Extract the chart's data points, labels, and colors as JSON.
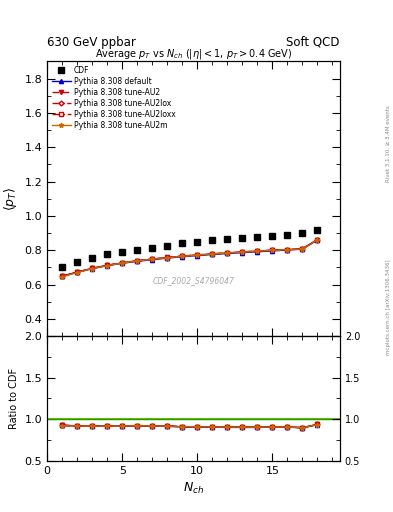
{
  "title_left": "630 GeV ppbar",
  "title_right": "Soft QCD",
  "right_label_top": "Rivet 3.1.10, ≥ 3.4M events",
  "right_label_bot": "mcplots.cern.ch [arXiv:1306.3436]",
  "plot_title": "Average $p_T$ vs $N_{ch}$ ($|\\eta| < 1$, $p_T > 0.4$ GeV)",
  "watermark": "CDF_2002_S4796047",
  "xlabel": "$N_{ch}$",
  "ylabel": "$\\langle p_T \\rangle$",
  "ylabel_ratio": "Ratio to CDF",
  "xlim": [
    0,
    19.5
  ],
  "ylim_main": [
    0.3,
    1.9
  ],
  "ylim_ratio": [
    0.5,
    2.0
  ],
  "yticks_main": [
    0.4,
    0.6,
    0.8,
    1.0,
    1.2,
    1.4,
    1.6,
    1.8
  ],
  "yticks_ratio": [
    0.5,
    1.0,
    1.5,
    2.0
  ],
  "xticks": [
    0,
    5,
    10,
    15
  ],
  "cdf_nch": [
    1,
    2,
    3,
    4,
    5,
    6,
    7,
    8,
    9,
    10,
    11,
    12,
    13,
    14,
    15,
    16,
    17,
    18
  ],
  "cdf_avgpt": [
    0.7,
    0.73,
    0.755,
    0.775,
    0.79,
    0.8,
    0.815,
    0.825,
    0.84,
    0.85,
    0.858,
    0.866,
    0.872,
    0.878,
    0.882,
    0.886,
    0.9,
    0.92
  ],
  "pythia_nch": [
    1,
    2,
    3,
    4,
    5,
    6,
    7,
    8,
    9,
    10,
    11,
    12,
    13,
    14,
    15,
    16,
    17,
    18
  ],
  "pythia_default": [
    0.648,
    0.672,
    0.693,
    0.71,
    0.724,
    0.735,
    0.745,
    0.754,
    0.762,
    0.769,
    0.775,
    0.781,
    0.786,
    0.791,
    0.796,
    0.801,
    0.806,
    0.86
  ],
  "pythia_au2": [
    0.648,
    0.672,
    0.694,
    0.712,
    0.727,
    0.739,
    0.749,
    0.758,
    0.766,
    0.773,
    0.779,
    0.785,
    0.79,
    0.795,
    0.8,
    0.804,
    0.808,
    0.862
  ],
  "pythia_au2lox": [
    0.648,
    0.672,
    0.694,
    0.712,
    0.726,
    0.738,
    0.748,
    0.757,
    0.765,
    0.772,
    0.778,
    0.784,
    0.79,
    0.795,
    0.8,
    0.804,
    0.808,
    0.862
  ],
  "pythia_au2loxx": [
    0.648,
    0.672,
    0.694,
    0.712,
    0.726,
    0.738,
    0.748,
    0.757,
    0.765,
    0.772,
    0.778,
    0.784,
    0.79,
    0.795,
    0.8,
    0.804,
    0.808,
    0.862
  ],
  "pythia_au2m": [
    0.645,
    0.67,
    0.692,
    0.71,
    0.725,
    0.737,
    0.747,
    0.756,
    0.764,
    0.771,
    0.778,
    0.784,
    0.789,
    0.794,
    0.799,
    0.803,
    0.807,
    0.861
  ],
  "color_default": "#0000cc",
  "color_au2": "#cc0000",
  "color_au2lox": "#cc0000",
  "color_au2loxx": "#cc0000",
  "color_au2m": "#cc6600",
  "color_green_line": "#00aa00",
  "color_yellow_line": "#aaaa00",
  "ratio_default": [
    0.926,
    0.92,
    0.918,
    0.916,
    0.918,
    0.919,
    0.915,
    0.914,
    0.907,
    0.905,
    0.904,
    0.902,
    0.901,
    0.901,
    0.904,
    0.905,
    0.896,
    0.935
  ],
  "ratio_au2": [
    0.926,
    0.92,
    0.919,
    0.918,
    0.92,
    0.924,
    0.92,
    0.919,
    0.912,
    0.909,
    0.908,
    0.906,
    0.907,
    0.905,
    0.907,
    0.908,
    0.898,
    0.937
  ],
  "ratio_au2lox": [
    0.926,
    0.92,
    0.919,
    0.918,
    0.919,
    0.922,
    0.919,
    0.918,
    0.911,
    0.908,
    0.907,
    0.905,
    0.906,
    0.905,
    0.907,
    0.908,
    0.898,
    0.937
  ],
  "ratio_au2loxx": [
    0.926,
    0.92,
    0.919,
    0.918,
    0.919,
    0.922,
    0.919,
    0.918,
    0.911,
    0.908,
    0.907,
    0.905,
    0.906,
    0.905,
    0.907,
    0.908,
    0.898,
    0.937
  ],
  "ratio_au2m": [
    0.921,
    0.918,
    0.917,
    0.916,
    0.918,
    0.921,
    0.918,
    0.916,
    0.91,
    0.907,
    0.907,
    0.905,
    0.905,
    0.904,
    0.906,
    0.906,
    0.897,
    0.936
  ]
}
